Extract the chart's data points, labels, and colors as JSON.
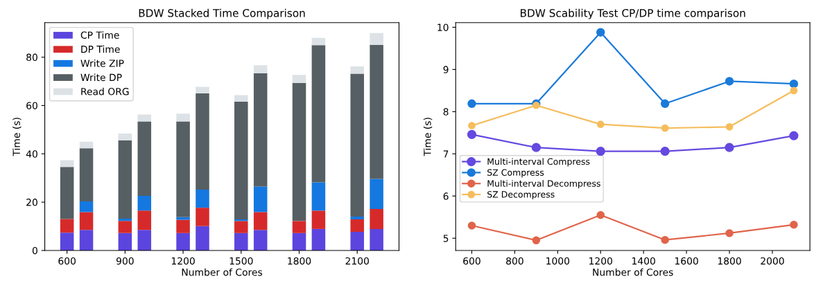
{
  "chart_data": [
    {
      "type": "bar",
      "stacked": true,
      "title": "BDW Stacked Time Comparison",
      "xlabel": "Number of Cores",
      "ylabel": "Time (s)",
      "x": [
        600,
        700,
        900,
        1000,
        1200,
        1300,
        1500,
        1600,
        1800,
        1900,
        2100,
        2200
      ],
      "xlim": [
        485,
        2316
      ],
      "xticks": [
        600,
        900,
        1200,
        1500,
        1800,
        2100
      ],
      "ylim": [
        0,
        94.3
      ],
      "yticks": [
        0,
        20,
        40,
        60,
        80
      ],
      "grid": false,
      "legend": "top left",
      "series": [
        {
          "name": "CP Time",
          "color": "#5b45de",
          "values": [
            7.4,
            8.5,
            7.2,
            8.5,
            7.2,
            10.1,
            7.2,
            8.5,
            7.2,
            8.9,
            7.7,
            8.9
          ]
        },
        {
          "name": "DP Time",
          "color": "#d62a2a",
          "values": [
            5.6,
            7.4,
            5.0,
            8.0,
            5.5,
            7.6,
            5.0,
            7.4,
            5.0,
            7.6,
            5.2,
            8.3
          ]
        },
        {
          "name": "Write ZIP",
          "color": "#1478e0",
          "values": [
            0,
            4.4,
            1.0,
            6.1,
            1.1,
            7.5,
            0.7,
            10.6,
            0,
            11.7,
            1.1,
            12.4
          ]
        },
        {
          "name": "Write DP",
          "color": "#565f63",
          "values": [
            21.6,
            22.0,
            32.4,
            30.8,
            39.6,
            39.8,
            48.7,
            46.9,
            57.1,
            56.8,
            59.2,
            55.5
          ]
        },
        {
          "name": "Read ORG",
          "color": "#dce2e6",
          "values": [
            2.8,
            2.7,
            2.8,
            2.9,
            3.2,
            2.7,
            2.7,
            3.3,
            3.4,
            3.0,
            3.0,
            4.9
          ]
        }
      ]
    },
    {
      "type": "line",
      "title": "BDW Scability Test CP/DP time comparison",
      "xlabel": "Number of Cores",
      "ylabel": "Time (s)",
      "x": [
        600,
        900,
        1200,
        1500,
        1800,
        2100
      ],
      "xlim": [
        525,
        2175
      ],
      "xticks": [
        600,
        800,
        1000,
        1200,
        1400,
        1600,
        1800,
        2000
      ],
      "ylim": [
        4.71,
        10.11
      ],
      "yticks": [
        5,
        6,
        7,
        8,
        9,
        10
      ],
      "grid": false,
      "legend": "left",
      "marker": "circle",
      "line_style": "solid",
      "series": [
        {
          "name": "Multi-interval Compress",
          "color": "#6549e0",
          "values": [
            7.46,
            7.15,
            7.06,
            7.06,
            7.15,
            7.43
          ]
        },
        {
          "name": "SZ Compress",
          "color": "#1a7ad9",
          "values": [
            8.19,
            8.19,
            9.88,
            8.19,
            8.72,
            8.66
          ]
        },
        {
          "name": "Multi-interval Decompress",
          "color": "#e0644a",
          "values": [
            5.3,
            4.95,
            5.55,
            4.96,
            5.12,
            5.32
          ]
        },
        {
          "name": "SZ Decompress",
          "color": "#f5bd5d",
          "values": [
            7.67,
            8.15,
            7.7,
            7.61,
            7.64,
            8.5
          ]
        }
      ]
    }
  ]
}
